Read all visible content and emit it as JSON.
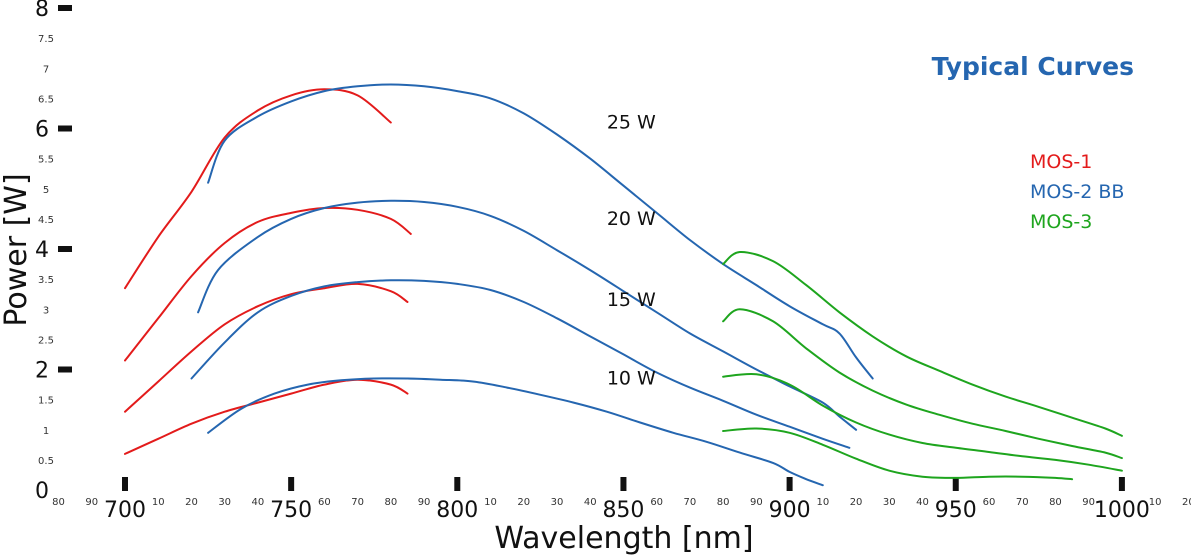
{
  "chart_data": {
    "type": "line",
    "title": "Typical Curves",
    "xlabel": "Wavelength [nm]",
    "ylabel": "Power [W]",
    "xlim": [
      680,
      1020
    ],
    "ylim": [
      0,
      8
    ],
    "x_major_ticks": [
      {
        "value": 700,
        "label": "700"
      },
      {
        "value": 750,
        "label": "750"
      },
      {
        "value": 800,
        "label": "800"
      },
      {
        "value": 850,
        "label": "850"
      },
      {
        "value": 900,
        "label": "900"
      },
      {
        "value": 950,
        "label": "950"
      },
      {
        "value": 1000,
        "label": "1000"
      }
    ],
    "x_minor_ticks": [
      {
        "value": 680,
        "label": "80"
      },
      {
        "value": 690,
        "label": "90"
      },
      {
        "value": 710,
        "label": "10"
      },
      {
        "value": 720,
        "label": "20"
      },
      {
        "value": 730,
        "label": "30"
      },
      {
        "value": 740,
        "label": "40"
      },
      {
        "value": 760,
        "label": "60"
      },
      {
        "value": 770,
        "label": "70"
      },
      {
        "value": 780,
        "label": "80"
      },
      {
        "value": 790,
        "label": "90"
      },
      {
        "value": 810,
        "label": "10"
      },
      {
        "value": 820,
        "label": "20"
      },
      {
        "value": 830,
        "label": "30"
      },
      {
        "value": 840,
        "label": "40"
      },
      {
        "value": 860,
        "label": "60"
      },
      {
        "value": 870,
        "label": "70"
      },
      {
        "value": 880,
        "label": "80"
      },
      {
        "value": 890,
        "label": "90"
      },
      {
        "value": 910,
        "label": "10"
      },
      {
        "value": 920,
        "label": "20"
      },
      {
        "value": 930,
        "label": "30"
      },
      {
        "value": 940,
        "label": "40"
      },
      {
        "value": 960,
        "label": "60"
      },
      {
        "value": 970,
        "label": "70"
      },
      {
        "value": 980,
        "label": "80"
      },
      {
        "value": 990,
        "label": "90"
      },
      {
        "value": 1010,
        "label": "10"
      },
      {
        "value": 1020,
        "label": "20"
      }
    ],
    "y_major_ticks": [
      {
        "value": 0,
        "label": "0"
      },
      {
        "value": 2,
        "label": "2"
      },
      {
        "value": 4,
        "label": "4"
      },
      {
        "value": 6,
        "label": "6"
      },
      {
        "value": 8,
        "label": "8"
      }
    ],
    "y_minor_ticks": [
      {
        "value": 0.5,
        "label": "0.5"
      },
      {
        "value": 1,
        "label": "1"
      },
      {
        "value": 1.5,
        "label": "1.5"
      },
      {
        "value": 2.5,
        "label": "2.5"
      },
      {
        "value": 3,
        "label": "3"
      },
      {
        "value": 3.5,
        "label": "3.5"
      },
      {
        "value": 4.5,
        "label": "4.5"
      },
      {
        "value": 5,
        "label": "5"
      },
      {
        "value": 5.5,
        "label": "5.5"
      },
      {
        "value": 6.5,
        "label": "6.5"
      },
      {
        "value": 7,
        "label": "7"
      },
      {
        "value": 7.5,
        "label": "7.5"
      }
    ],
    "colors": {
      "title": "#2566b0",
      "MOS-1": "#e31b1b",
      "MOS-2 BB": "#2566b0",
      "MOS-3": "#1ea51e"
    },
    "legend": {
      "placement": "right",
      "entries": [
        {
          "name": "MOS-1",
          "color": "#e31b1b"
        },
        {
          "name": "MOS-2 BB",
          "color": "#2566b0"
        },
        {
          "name": "MOS-3",
          "color": "#1ea51e"
        }
      ]
    },
    "annotations": [
      {
        "text": "25 W",
        "x": 845,
        "y": 6.0
      },
      {
        "text": "20 W",
        "x": 845,
        "y": 4.4
      },
      {
        "text": "15 W",
        "x": 845,
        "y": 3.05
      },
      {
        "text": "10 W",
        "x": 845,
        "y": 1.75
      }
    ],
    "series": [
      {
        "name": "MOS-1",
        "level": "25 W",
        "points": [
          [
            700,
            3.35
          ],
          [
            710,
            4.2
          ],
          [
            720,
            4.95
          ],
          [
            730,
            5.85
          ],
          [
            740,
            6.3
          ],
          [
            750,
            6.55
          ],
          [
            760,
            6.65
          ],
          [
            770,
            6.55
          ],
          [
            780,
            6.1
          ]
        ]
      },
      {
        "name": "MOS-1",
        "level": "20 W",
        "points": [
          [
            700,
            2.15
          ],
          [
            710,
            2.85
          ],
          [
            720,
            3.55
          ],
          [
            730,
            4.1
          ],
          [
            740,
            4.45
          ],
          [
            750,
            4.6
          ],
          [
            760,
            4.68
          ],
          [
            770,
            4.65
          ],
          [
            780,
            4.5
          ],
          [
            786,
            4.25
          ]
        ]
      },
      {
        "name": "MOS-1",
        "level": "15 W",
        "points": [
          [
            700,
            1.3
          ],
          [
            710,
            1.8
          ],
          [
            720,
            2.3
          ],
          [
            730,
            2.75
          ],
          [
            740,
            3.05
          ],
          [
            750,
            3.25
          ],
          [
            760,
            3.35
          ],
          [
            770,
            3.42
          ],
          [
            780,
            3.3
          ],
          [
            785,
            3.12
          ]
        ]
      },
      {
        "name": "MOS-1",
        "level": "10 W",
        "points": [
          [
            700,
            0.6
          ],
          [
            710,
            0.85
          ],
          [
            720,
            1.1
          ],
          [
            730,
            1.3
          ],
          [
            740,
            1.45
          ],
          [
            750,
            1.6
          ],
          [
            760,
            1.75
          ],
          [
            770,
            1.83
          ],
          [
            780,
            1.75
          ],
          [
            785,
            1.6
          ]
        ]
      },
      {
        "name": "MOS-2 BB",
        "level": "25 W",
        "points": [
          [
            725,
            5.1
          ],
          [
            730,
            5.8
          ],
          [
            740,
            6.2
          ],
          [
            750,
            6.45
          ],
          [
            760,
            6.62
          ],
          [
            770,
            6.7
          ],
          [
            780,
            6.73
          ],
          [
            790,
            6.7
          ],
          [
            800,
            6.62
          ],
          [
            810,
            6.5
          ],
          [
            820,
            6.25
          ],
          [
            830,
            5.9
          ],
          [
            840,
            5.5
          ],
          [
            850,
            5.05
          ],
          [
            860,
            4.6
          ],
          [
            870,
            4.15
          ],
          [
            880,
            3.75
          ],
          [
            890,
            3.4
          ],
          [
            900,
            3.05
          ],
          [
            910,
            2.75
          ],
          [
            915,
            2.6
          ],
          [
            920,
            2.2
          ],
          [
            925,
            1.85
          ]
        ]
      },
      {
        "name": "MOS-2 BB",
        "level": "20 W",
        "points": [
          [
            722,
            2.95
          ],
          [
            728,
            3.65
          ],
          [
            740,
            4.2
          ],
          [
            750,
            4.5
          ],
          [
            760,
            4.68
          ],
          [
            770,
            4.77
          ],
          [
            780,
            4.8
          ],
          [
            790,
            4.78
          ],
          [
            800,
            4.7
          ],
          [
            810,
            4.55
          ],
          [
            820,
            4.3
          ],
          [
            830,
            3.98
          ],
          [
            840,
            3.65
          ],
          [
            850,
            3.3
          ],
          [
            860,
            2.95
          ],
          [
            870,
            2.6
          ],
          [
            880,
            2.3
          ],
          [
            890,
            2.0
          ],
          [
            900,
            1.72
          ],
          [
            910,
            1.45
          ],
          [
            915,
            1.22
          ],
          [
            920,
            1.0
          ]
        ]
      },
      {
        "name": "MOS-2 BB",
        "level": "15 W",
        "points": [
          [
            720,
            1.85
          ],
          [
            730,
            2.45
          ],
          [
            740,
            2.95
          ],
          [
            750,
            3.22
          ],
          [
            760,
            3.38
          ],
          [
            770,
            3.45
          ],
          [
            780,
            3.48
          ],
          [
            790,
            3.47
          ],
          [
            800,
            3.42
          ],
          [
            810,
            3.32
          ],
          [
            820,
            3.12
          ],
          [
            830,
            2.85
          ],
          [
            840,
            2.55
          ],
          [
            850,
            2.25
          ],
          [
            860,
            1.95
          ],
          [
            870,
            1.7
          ],
          [
            880,
            1.48
          ],
          [
            890,
            1.25
          ],
          [
            900,
            1.05
          ],
          [
            910,
            0.85
          ],
          [
            918,
            0.7
          ]
        ]
      },
      {
        "name": "MOS-2 BB",
        "level": "10 W",
        "points": [
          [
            725,
            0.95
          ],
          [
            735,
            1.35
          ],
          [
            745,
            1.6
          ],
          [
            755,
            1.75
          ],
          [
            765,
            1.82
          ],
          [
            775,
            1.85
          ],
          [
            785,
            1.85
          ],
          [
            795,
            1.83
          ],
          [
            805,
            1.8
          ],
          [
            815,
            1.7
          ],
          [
            825,
            1.58
          ],
          [
            835,
            1.45
          ],
          [
            845,
            1.3
          ],
          [
            855,
            1.12
          ],
          [
            865,
            0.95
          ],
          [
            875,
            0.8
          ],
          [
            885,
            0.62
          ],
          [
            895,
            0.45
          ],
          [
            900,
            0.3
          ],
          [
            905,
            0.18
          ],
          [
            910,
            0.08
          ]
        ]
      },
      {
        "name": "MOS-3",
        "level": "25 W",
        "points": [
          [
            880,
            3.75
          ],
          [
            885,
            3.95
          ],
          [
            895,
            3.8
          ],
          [
            905,
            3.4
          ],
          [
            915,
            2.95
          ],
          [
            925,
            2.55
          ],
          [
            935,
            2.22
          ],
          [
            945,
            1.98
          ],
          [
            955,
            1.75
          ],
          [
            965,
            1.55
          ],
          [
            975,
            1.38
          ],
          [
            985,
            1.2
          ],
          [
            995,
            1.02
          ],
          [
            1000,
            0.9
          ]
        ]
      },
      {
        "name": "MOS-3",
        "level": "20 W",
        "points": [
          [
            880,
            2.8
          ],
          [
            885,
            3.0
          ],
          [
            895,
            2.8
          ],
          [
            905,
            2.35
          ],
          [
            915,
            1.95
          ],
          [
            925,
            1.65
          ],
          [
            935,
            1.42
          ],
          [
            945,
            1.25
          ],
          [
            955,
            1.1
          ],
          [
            965,
            0.98
          ],
          [
            975,
            0.85
          ],
          [
            985,
            0.73
          ],
          [
            995,
            0.62
          ],
          [
            1000,
            0.53
          ]
        ]
      },
      {
        "name": "MOS-3",
        "level": "15 W",
        "points": [
          [
            880,
            1.88
          ],
          [
            890,
            1.92
          ],
          [
            900,
            1.75
          ],
          [
            910,
            1.4
          ],
          [
            920,
            1.12
          ],
          [
            930,
            0.92
          ],
          [
            940,
            0.78
          ],
          [
            950,
            0.7
          ],
          [
            960,
            0.63
          ],
          [
            970,
            0.56
          ],
          [
            980,
            0.5
          ],
          [
            990,
            0.42
          ],
          [
            1000,
            0.32
          ]
        ]
      },
      {
        "name": "MOS-3",
        "level": "10 W",
        "points": [
          [
            880,
            0.98
          ],
          [
            890,
            1.02
          ],
          [
            900,
            0.95
          ],
          [
            910,
            0.75
          ],
          [
            920,
            0.52
          ],
          [
            930,
            0.32
          ],
          [
            940,
            0.22
          ],
          [
            950,
            0.2
          ],
          [
            960,
            0.22
          ],
          [
            970,
            0.22
          ],
          [
            980,
            0.2
          ],
          [
            985,
            0.18
          ]
        ]
      }
    ]
  }
}
